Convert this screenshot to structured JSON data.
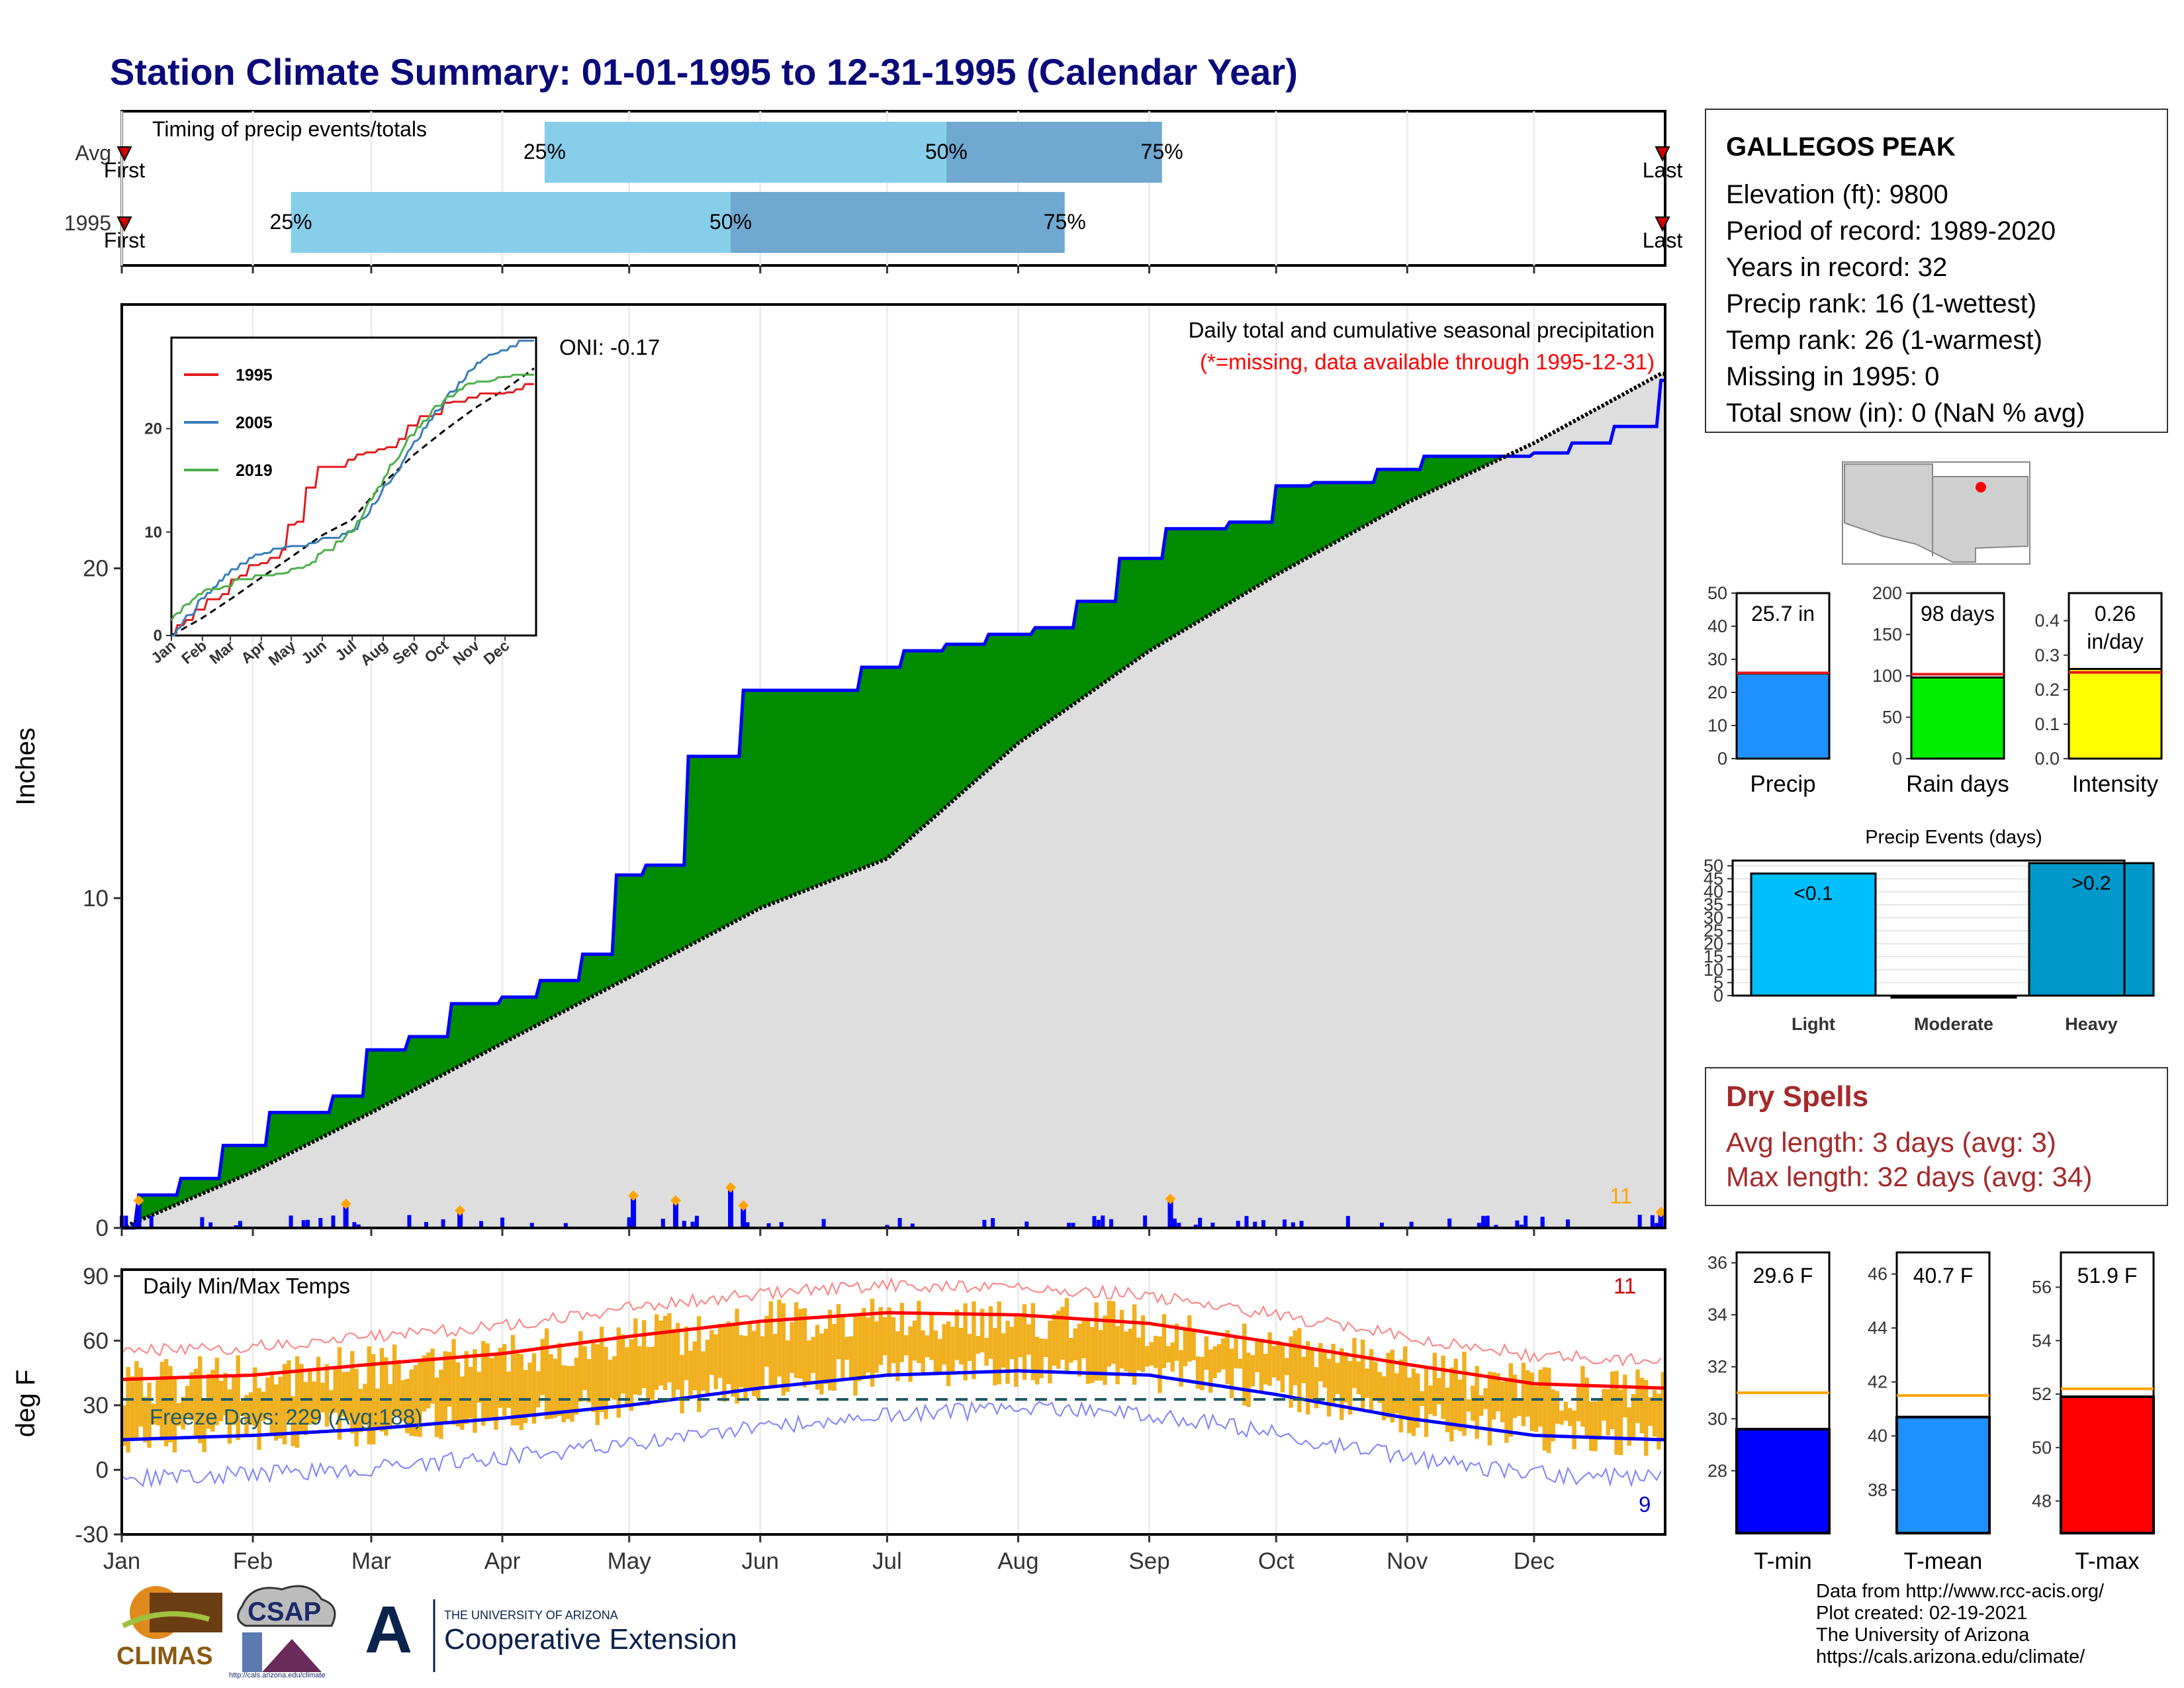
{
  "title": "Station Climate Summary: 01-01-1995 to 12-31-1995 (Calendar Year)",
  "timing": {
    "label": "Timing of precip events/totals",
    "rows": [
      {
        "name": "Avg",
        "q25": "Apr 11",
        "q50": "Jul 15",
        "q75": "Sep 4",
        "first_label": "First",
        "last_label": "Last"
      },
      {
        "name": "1995",
        "q25": "Feb 10",
        "q50": "May 25",
        "q75": "Aug 12",
        "first_label": "First",
        "last_label": "Last"
      }
    ],
    "q_labels": [
      "25%",
      "50%",
      "75%"
    ]
  },
  "station": {
    "name": "GALLEGOS PEAK",
    "lines": [
      "Elevation (ft): 9800",
      "Period of record: 1989-2020",
      "Years in record: 32",
      "Precip rank: 16 (1-wettest)",
      "Temp rank: 26 (1-warmest)",
      "Missing in 1995: 0",
      "Total snow (in): 0 (NaN % avg)"
    ]
  },
  "precip_panel": {
    "ylabel": "Inches",
    "header": "Daily total and cumulative seasonal precipitation",
    "missing_note": "(*=missing, data available through 1995-12-31)",
    "oni": "ONI: -0.17",
    "count_label": "11",
    "yticks": [
      "0",
      "10",
      "20"
    ]
  },
  "inset": {
    "legend": [
      {
        "name": "1995",
        "color": "#e41a1c"
      },
      {
        "name": "2005",
        "color": "#377eb8"
      },
      {
        "name": "2019",
        "color": "#4daf4a"
      }
    ],
    "yticks": [
      "0",
      "10",
      "20"
    ]
  },
  "temp_panel": {
    "ylabel": "deg F",
    "label": "Daily Min/Max Temps",
    "freeze": "Freeze Days: 229 (Avg:188)",
    "max_count": "11",
    "min_count": "9",
    "yticks": [
      "-30",
      "0",
      "30",
      "60",
      "90"
    ]
  },
  "months": [
    "Jan",
    "Feb",
    "Mar",
    "Apr",
    "May",
    "Jun",
    "Jul",
    "Aug",
    "Sep",
    "Oct",
    "Nov",
    "Dec"
  ],
  "summary_bars": [
    {
      "name": "Precip",
      "label1": "25.7 in",
      "label2": "",
      "value": 25.7,
      "avg": 25.9,
      "ymax": 50,
      "yticks": [
        "0",
        "10",
        "20",
        "30",
        "40",
        "50"
      ],
      "color": "#1e90ff"
    },
    {
      "name": "Rain days",
      "label1": "98 days",
      "label2": "",
      "value": 98,
      "avg": 102,
      "ymax": 200,
      "yticks": [
        "0",
        "50",
        "100",
        "150",
        "200"
      ],
      "color": "#00ee00"
    },
    {
      "name": "Intensity",
      "label1": "0.26",
      "label2": "in/day",
      "value": 0.26,
      "avg": 0.25,
      "ymax": 0.48,
      "yticks": [
        "0.0",
        "0.1",
        "0.2",
        "0.3",
        "0.4"
      ],
      "color": "#ffff00"
    }
  ],
  "events": {
    "title": "Precip Events (days)",
    "categories": [
      "Light",
      "Moderate",
      "Heavy"
    ],
    "values": [
      47,
      0,
      51
    ],
    "labels": [
      "<0.1",
      "",
      ">0.2"
    ],
    "yticks": [
      "0",
      "5",
      "10",
      "15",
      "20",
      "25",
      "30",
      "35",
      "40",
      "45",
      "50"
    ],
    "colors": [
      "#00bfff",
      "#1a1a1a",
      "#0099cc"
    ]
  },
  "dry_spells": {
    "title": "Dry Spells",
    "avg": "Avg length: 3 days (avg: 3)",
    "max": "Max length: 32 days (avg: 34)"
  },
  "temp_bars": [
    {
      "name": "T-min",
      "label": "29.6 F",
      "value": 29.6,
      "avg": 31.0,
      "ymin": 25.6,
      "ymax": 36.4,
      "yticks": [
        "28",
        "30",
        "32",
        "34",
        "36"
      ],
      "color": "#0000ff"
    },
    {
      "name": "T-mean",
      "label": "40.7 F",
      "value": 40.7,
      "avg": 41.5,
      "ymin": 36.4,
      "ymax": 46.8,
      "yticks": [
        "38",
        "40",
        "42",
        "44",
        "46"
      ],
      "color": "#1e90ff"
    },
    {
      "name": "T-max",
      "label": "51.9 F",
      "value": 51.9,
      "avg": 52.2,
      "ymin": 46.8,
      "ymax": 57.3,
      "yticks": [
        "48",
        "50",
        "52",
        "54",
        "56"
      ],
      "color": "#ff0000"
    }
  ],
  "credits": [
    "Data from http://www.rcc-acis.org/",
    "Plot created: 02-19-2021",
    "The University of Arizona",
    "https://cals.arizona.edu/climate/"
  ],
  "logos": {
    "climas": "CLIMAS",
    "csap": "CSAP",
    "csap_url": "http://cals.arizona.edu/climate",
    "ua_small": "THE UNIVERSITY OF ARIZONA",
    "ua_big": "Cooperative Extension"
  },
  "chart_data": [
    {
      "type": "area",
      "title": "Daily total and cumulative seasonal precipitation",
      "xlabel": "",
      "ylabel": "Inches",
      "ylim": [
        0,
        28
      ],
      "series": [
        {
          "name": "1995",
          "x": [
            "01-01",
            "01-05",
            "01-15",
            "01-25",
            "02-05",
            "02-20",
            "02-28",
            "03-10",
            "03-20",
            "04-01",
            "04-10",
            "04-20",
            "04-28",
            "05-05",
            "05-15",
            "05-28",
            "06-10",
            "06-25",
            "07-05",
            "07-15",
            "07-25",
            "08-05",
            "08-15",
            "08-25",
            "09-05",
            "09-20",
            "10-01",
            "10-10",
            "10-25",
            "11-05",
            "11-20",
            "12-01",
            "12-10",
            "12-20",
            "12-31"
          ],
          "values": [
            0.0,
            1.0,
            1.5,
            2.5,
            3.5,
            4.0,
            5.4,
            5.8,
            6.8,
            7.0,
            7.5,
            8.3,
            10.7,
            11.0,
            14.3,
            16.3,
            16.3,
            17.0,
            17.5,
            17.7,
            18.0,
            18.2,
            19.0,
            20.3,
            21.2,
            21.4,
            22.5,
            22.6,
            23.0,
            23.4,
            23.4,
            23.5,
            23.8,
            24.3,
            25.7
          ]
        },
        {
          "name": "",
          "x": [
            "01-01",
            "02-01",
            "03-01",
            "04-01",
            "05-01",
            "06-01",
            "07-01",
            "08-01",
            "09-01",
            "10-01",
            "11-01",
            "12-01",
            "12-31"
          ],
          "values": [
            0.0,
            1.7,
            3.5,
            5.6,
            7.6,
            9.7,
            11.2,
            14.7,
            17.5,
            19.8,
            22.0,
            23.8,
            25.9
          ]
        }
      ],
      "daily_precip": {
        "x": [
          "01-05",
          "02-23",
          "03-22",
          "05-02",
          "05-12",
          "05-25",
          "05-28",
          "09-06",
          "12-31"
        ],
        "values": [
          0.75,
          0.65,
          0.45,
          0.9,
          0.75,
          1.15,
          0.6,
          0.8,
          0.4
        ]
      }
    },
    {
      "type": "line",
      "title": "",
      "xlabel": "",
      "ylabel": "deg F",
      "ylim": [
        -30,
        93
      ],
      "x": [
        "01-01",
        "02-01",
        "03-01",
        "04-01",
        "05-01",
        "06-01",
        "07-01",
        "08-01",
        "09-01",
        "10-01",
        "11-01",
        "12-01",
        "12-31"
      ],
      "series": [
        {
          "name": "",
          "values": [
            42,
            44,
            49,
            54,
            62,
            69,
            73,
            72,
            68,
            59,
            49,
            40,
            38
          ]
        },
        {
          "name": "",
          "values": [
            14,
            16,
            19,
            24,
            30,
            38,
            44,
            46,
            44,
            35,
            24,
            16,
            14
          ]
        }
      ]
    }
  ]
}
